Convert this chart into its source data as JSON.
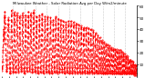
{
  "title": "Milwaukee Weather - Solar Radiation Avg per Day W/m2/minute",
  "line_color": "#ff0000",
  "bg_color": "#ffffff",
  "grid_color": "#999999",
  "ylim": [
    0,
    60
  ],
  "yticks": [
    10,
    20,
    30,
    40,
    50,
    60
  ],
  "values": [
    8,
    7,
    6,
    5,
    9,
    12,
    15,
    20,
    22,
    25,
    28,
    32,
    36,
    40,
    38,
    35,
    30,
    45,
    50,
    48,
    52,
    55,
    50,
    45,
    42,
    38,
    32,
    28,
    22,
    18,
    15,
    10,
    8,
    6,
    5,
    4,
    5,
    7,
    10,
    14,
    20,
    28,
    35,
    40,
    42,
    45,
    48,
    50,
    48,
    44,
    38,
    32,
    26,
    20,
    15,
    10,
    7,
    5,
    3,
    2,
    3,
    5,
    8,
    12,
    18,
    25,
    32,
    40,
    48,
    54,
    56,
    52,
    46,
    38,
    30,
    22,
    15,
    10,
    7,
    5,
    4,
    3,
    4,
    6,
    10,
    15,
    22,
    30,
    38,
    46,
    52,
    55,
    52,
    46,
    38,
    30,
    22,
    14,
    8,
    4,
    3,
    4,
    6,
    9,
    14,
    20,
    28,
    36,
    44,
    50,
    54,
    52,
    48,
    42,
    35,
    26,
    18,
    12,
    7,
    4,
    3,
    5,
    8,
    12,
    18,
    26,
    34,
    42,
    48,
    52,
    50,
    45,
    38,
    30,
    22,
    16,
    11,
    8,
    6,
    5,
    4,
    5,
    7,
    10,
    14,
    20,
    28,
    36,
    44,
    50,
    54,
    52,
    46,
    38,
    30,
    22,
    15,
    10,
    7,
    5,
    3,
    2,
    3,
    5,
    8,
    12,
    18,
    26,
    34,
    42,
    48,
    52,
    50,
    45,
    38,
    30,
    22,
    15,
    10,
    7,
    5,
    4,
    5,
    8,
    12,
    18,
    25,
    34,
    42,
    48,
    52,
    55,
    50,
    44,
    36,
    28,
    20,
    13,
    8,
    5,
    4,
    6,
    9,
    14,
    20,
    28,
    36,
    44,
    50,
    54,
    52,
    46,
    40,
    32,
    24,
    16,
    10,
    6,
    4,
    3,
    4,
    6,
    10,
    15,
    22,
    30,
    38,
    46,
    52,
    56,
    54,
    48,
    42,
    34,
    26,
    18,
    12,
    8,
    5,
    4,
    3,
    5,
    8,
    12,
    18,
    25,
    33,
    40,
    47,
    51,
    50,
    44,
    36,
    28,
    20,
    13,
    8,
    5,
    3,
    2,
    3,
    5,
    8,
    12,
    17,
    24,
    32,
    39,
    45,
    50,
    52,
    48,
    42,
    35,
    27,
    19,
    12,
    7,
    4,
    3,
    4,
    6,
    9,
    14,
    20,
    27,
    35,
    43,
    49,
    53,
    52,
    46,
    39,
    31,
    23,
    15,
    9,
    5,
    3,
    2,
    3,
    5,
    8,
    12,
    17,
    23,
    31,
    38,
    44,
    49,
    51,
    47,
    40,
    32,
    24,
    16,
    10,
    6,
    4,
    3,
    4,
    6,
    9,
    13,
    19,
    26,
    34,
    41,
    47,
    51,
    50,
    44,
    37,
    29,
    21,
    14,
    9,
    5,
    3,
    2,
    3,
    4,
    7,
    11,
    16,
    23,
    30,
    38,
    44,
    48,
    50,
    46,
    39,
    31,
    23,
    15,
    9,
    5,
    3,
    2,
    3,
    5,
    8,
    12,
    17,
    24,
    31,
    38,
    44,
    48,
    46,
    40,
    32,
    24,
    16,
    10,
    6,
    4,
    3,
    5,
    8,
    12,
    18,
    25,
    33,
    41,
    47,
    51,
    50,
    43,
    35,
    27,
    19,
    12,
    7,
    4,
    3,
    2,
    4,
    7,
    11,
    17,
    23,
    31,
    39,
    45,
    49,
    48,
    42,
    34,
    26,
    18,
    11,
    6,
    4,
    3,
    4,
    6,
    10,
    15,
    22,
    30,
    38,
    44,
    48,
    47,
    41,
    33,
    25,
    17,
    10,
    6,
    4,
    3,
    4,
    6,
    10,
    15,
    22,
    30,
    37,
    43,
    47,
    46,
    40,
    32,
    24,
    16,
    9,
    5,
    3,
    2,
    3,
    5,
    8,
    12,
    17,
    24,
    32,
    39,
    44,
    46,
    42,
    35,
    27,
    19,
    12,
    7,
    4,
    3,
    3,
    5,
    8,
    11,
    16,
    22,
    30,
    37,
    43,
    47,
    45,
    39,
    31,
    23,
    15,
    9,
    5,
    3,
    2,
    3,
    5,
    8,
    12,
    17,
    23,
    30,
    37,
    43,
    47,
    45,
    39,
    31,
    23,
    15,
    9,
    5,
    3,
    2,
    3,
    5,
    8,
    12,
    17,
    23,
    30,
    37,
    43,
    46,
    44,
    37,
    29,
    21,
    14,
    8,
    4,
    3,
    2,
    4,
    7,
    11,
    16,
    22,
    29,
    36,
    42,
    45,
    44,
    38,
    30,
    22,
    14,
    8,
    4,
    3,
    2,
    4,
    7,
    10,
    15,
    21,
    28,
    35,
    41,
    44,
    43,
    37,
    29,
    21,
    13,
    7,
    4,
    3,
    2,
    4,
    7,
    10,
    15,
    21,
    28,
    35,
    40,
    43,
    42,
    36,
    28,
    20,
    12,
    7,
    4,
    3,
    2,
    4,
    7,
    10,
    15,
    21,
    28,
    34,
    39,
    42,
    41,
    35,
    27,
    19,
    12,
    7,
    3,
    2,
    3,
    5,
    8,
    12,
    17,
    23,
    30,
    36,
    41,
    42,
    37,
    30,
    22,
    14,
    8,
    4,
    3,
    2,
    4,
    7,
    11,
    16,
    22,
    29,
    36,
    40,
    41,
    36,
    29,
    21,
    13,
    7,
    4,
    3,
    2,
    4,
    7,
    11,
    16,
    22,
    29,
    35,
    39,
    40,
    35,
    27,
    19,
    12,
    7,
    4,
    3,
    2,
    4,
    7,
    11,
    16,
    22,
    28,
    34,
    38,
    39,
    34,
    26,
    18,
    11,
    6,
    3,
    2,
    3,
    5,
    9,
    14,
    19,
    26,
    32,
    36,
    37,
    32,
    25,
    17,
    10,
    5,
    3,
    2,
    3,
    5,
    8,
    12,
    17,
    23,
    29,
    33,
    35,
    30,
    23,
    15,
    9,
    5,
    3,
    2,
    3,
    5,
    9,
    14,
    20,
    26,
    31,
    33,
    30,
    23,
    15,
    9,
    5,
    3,
    2,
    3,
    5,
    9,
    13,
    19,
    24,
    29,
    31,
    28,
    21,
    14,
    8,
    4,
    2,
    2,
    3,
    5,
    9,
    14,
    19,
    25,
    29,
    28,
    22,
    15,
    9,
    4,
    2,
    2,
    3,
    6,
    10,
    15,
    21,
    26,
    28,
    26,
    19,
    12,
    7,
    3,
    2,
    2,
    3,
    6,
    10,
    15,
    20,
    25,
    27,
    25,
    18,
    11,
    6,
    3,
    2,
    3,
    5,
    9,
    14,
    19,
    24,
    26,
    24,
    17,
    10,
    5,
    3,
    2,
    3,
    5,
    9,
    14,
    18,
    23,
    25,
    22,
    16,
    9,
    5,
    2,
    2,
    2,
    4,
    7,
    12,
    17,
    22,
    24,
    22,
    16,
    9,
    5,
    2,
    2,
    3,
    5,
    9,
    13,
    18,
    22,
    23,
    21,
    15,
    8,
    4,
    2,
    2,
    3,
    6,
    10,
    15,
    20,
    23,
    21,
    15,
    8,
    4,
    2,
    2,
    3,
    5,
    9,
    13,
    18,
    22,
    22,
    17,
    10,
    5,
    2,
    2,
    2,
    4,
    8,
    13,
    18,
    22,
    22,
    17,
    10,
    5,
    2,
    2,
    2,
    4,
    8,
    13,
    17,
    21,
    21,
    16,
    9,
    4,
    2,
    2,
    3,
    6,
    10,
    15,
    19,
    20,
    16,
    9,
    4,
    2,
    2,
    3,
    5,
    9,
    13,
    17,
    19,
    15,
    9,
    4,
    2,
    2,
    3,
    5,
    8,
    12,
    16,
    18,
    14,
    8,
    4,
    2,
    2,
    3,
    5,
    8,
    12,
    15,
    17,
    13,
    7,
    3,
    2,
    2,
    3,
    5,
    8,
    12,
    14,
    12,
    6,
    3,
    2,
    2,
    3,
    5,
    8,
    12,
    14,
    12,
    6,
    3,
    2,
    2,
    3,
    5,
    8,
    11,
    13,
    10,
    5,
    2,
    2,
    2,
    3,
    5,
    8,
    10,
    12,
    9,
    4,
    2,
    1,
    2,
    3,
    5,
    7,
    9,
    10,
    8,
    3,
    1,
    1,
    2,
    3,
    5,
    7,
    9,
    9,
    6,
    2
  ],
  "num_vgrid": 12
}
